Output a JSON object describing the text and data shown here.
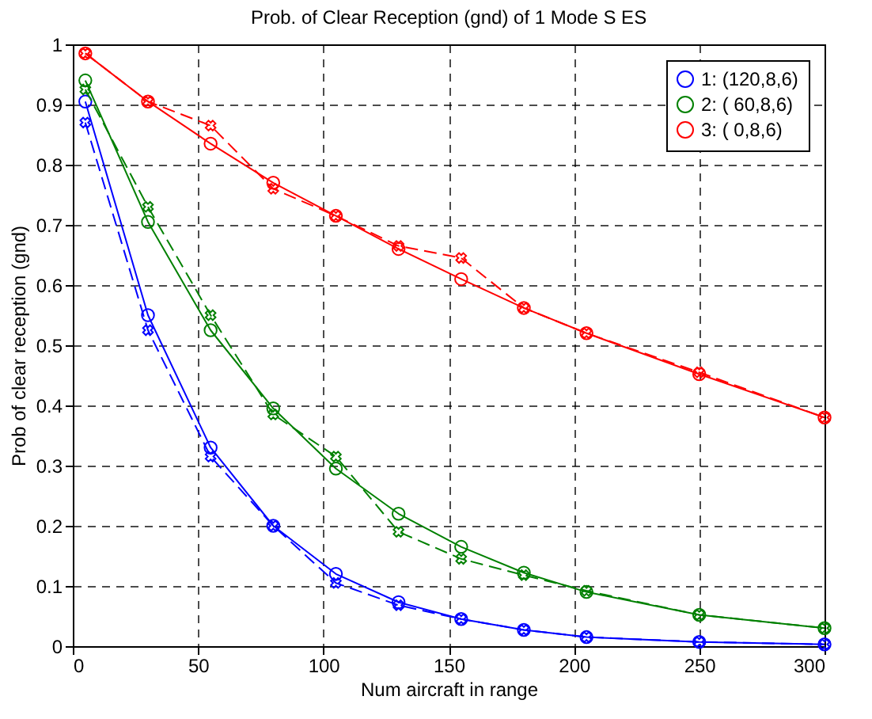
{
  "chart_data": {
    "type": "line",
    "title": "Prob. of Clear Reception (gnd) of 1 Mode S ES",
    "xlabel": "Num aircraft in range",
    "ylabel": "Prob of clear reception (gnd)",
    "x": [
      5,
      30,
      55,
      80,
      105,
      130,
      155,
      180,
      205,
      250,
      300
    ],
    "series": [
      {
        "name": "1: (120,8,6)",
        "color": "#0000ff",
        "marker": "circle",
        "line_style": "solid",
        "values": [
          0.905,
          0.55,
          0.33,
          0.2,
          0.12,
          0.073,
          0.045,
          0.027,
          0.015,
          0.007,
          0.003
        ]
      },
      {
        "name": "2: ( 60,8,6)",
        "color": "#008000",
        "marker": "circle",
        "line_style": "solid",
        "values": [
          0.94,
          0.705,
          0.525,
          0.395,
          0.295,
          0.22,
          0.165,
          0.122,
          0.09,
          0.052,
          0.03
        ]
      },
      {
        "name": "3: (  0,8,6)",
        "color": "#ff0000",
        "marker": "circle",
        "line_style": "solid",
        "values": [
          0.985,
          0.905,
          0.835,
          0.77,
          0.715,
          0.66,
          0.61,
          0.562,
          0.52,
          0.452,
          0.38
        ]
      },
      {
        "color": "#0000ff",
        "marker": "cross",
        "line_style": "dashed",
        "values": [
          0.87,
          0.525,
          0.315,
          0.2,
          0.105,
          0.068,
          0.045,
          0.027,
          0.015,
          0.007,
          0.003
        ]
      },
      {
        "color": "#008000",
        "marker": "cross",
        "line_style": "dashed",
        "values": [
          0.925,
          0.73,
          0.55,
          0.385,
          0.315,
          0.19,
          0.145,
          0.118,
          0.092,
          0.052,
          0.03
        ]
      },
      {
        "color": "#ff0000",
        "marker": "cross",
        "line_style": "dashed",
        "values": [
          0.985,
          0.905,
          0.865,
          0.76,
          0.715,
          0.665,
          0.645,
          0.562,
          0.52,
          0.455,
          0.38
        ]
      }
    ],
    "xlim": [
      0,
      300
    ],
    "xticks": [
      0,
      50,
      100,
      150,
      200,
      250,
      300
    ],
    "ylim": [
      0,
      1
    ],
    "yticks": [
      0,
      0.1,
      0.2,
      0.3,
      0.4,
      0.5,
      0.6,
      0.7,
      0.8,
      0.9,
      1
    ],
    "grid": true,
    "legend": "top right"
  }
}
